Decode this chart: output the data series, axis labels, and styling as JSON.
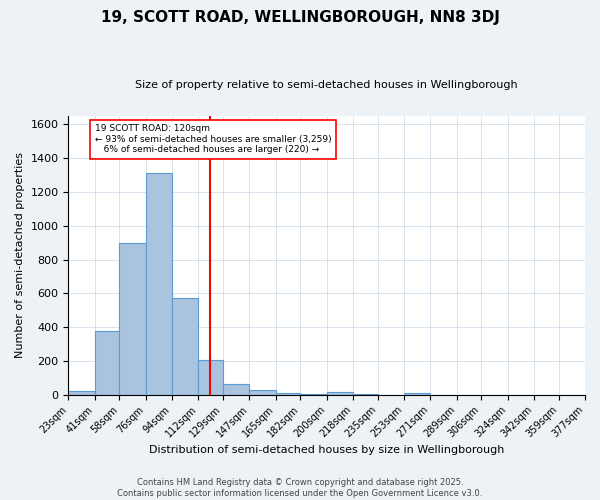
{
  "title": "19, SCOTT ROAD, WELLINGBOROUGH, NN8 3DJ",
  "subtitle": "Size of property relative to semi-detached houses in Wellingborough",
  "xlabel": "Distribution of semi-detached houses by size in Wellingborough",
  "ylabel": "Number of semi-detached properties",
  "footer_line1": "Contains HM Land Registry data © Crown copyright and database right 2025.",
  "footer_line2": "Contains public sector information licensed under the Open Government Licence v3.0.",
  "bin_edges": [
    23,
    41,
    58,
    76,
    94,
    112,
    129,
    147,
    165,
    182,
    200,
    218,
    235,
    253,
    271,
    289,
    306,
    324,
    342,
    359,
    377
  ],
  "bin_labels": [
    "23sqm",
    "41sqm",
    "58sqm",
    "76sqm",
    "94sqm",
    "112sqm",
    "129sqm",
    "147sqm",
    "165sqm",
    "182sqm",
    "200sqm",
    "218sqm",
    "235sqm",
    "253sqm",
    "271sqm",
    "289sqm",
    "306sqm",
    "324sqm",
    "342sqm",
    "359sqm",
    "377sqm"
  ],
  "bar_heights": [
    20,
    380,
    900,
    1310,
    570,
    205,
    65,
    30,
    10,
    5,
    15,
    5,
    0,
    10,
    0,
    0,
    0,
    0,
    0,
    0
  ],
  "bar_facecolor": "#aac4e0",
  "bar_edgecolor": "#5b9bd5",
  "vline_x": 120,
  "vline_color": "red",
  "annotation_text": "19 SCOTT ROAD: 120sqm\n← 93% of semi-detached houses are smaller (3,259)\n   6% of semi-detached houses are larger (220) →",
  "annotation_box_edgecolor": "red",
  "annotation_box_facecolor": "white",
  "ylim": [
    0,
    1650
  ],
  "yticks": [
    0,
    200,
    400,
    600,
    800,
    1000,
    1200,
    1400,
    1600
  ],
  "background_color": "#edf2f7",
  "plot_background": "#ffffff",
  "grid_color": "#c8d8e8",
  "title_fontsize": 11,
  "subtitle_fontsize": 8,
  "xlabel_fontsize": 8,
  "ylabel_fontsize": 8,
  "tick_fontsize": 7,
  "footer_fontsize": 6
}
